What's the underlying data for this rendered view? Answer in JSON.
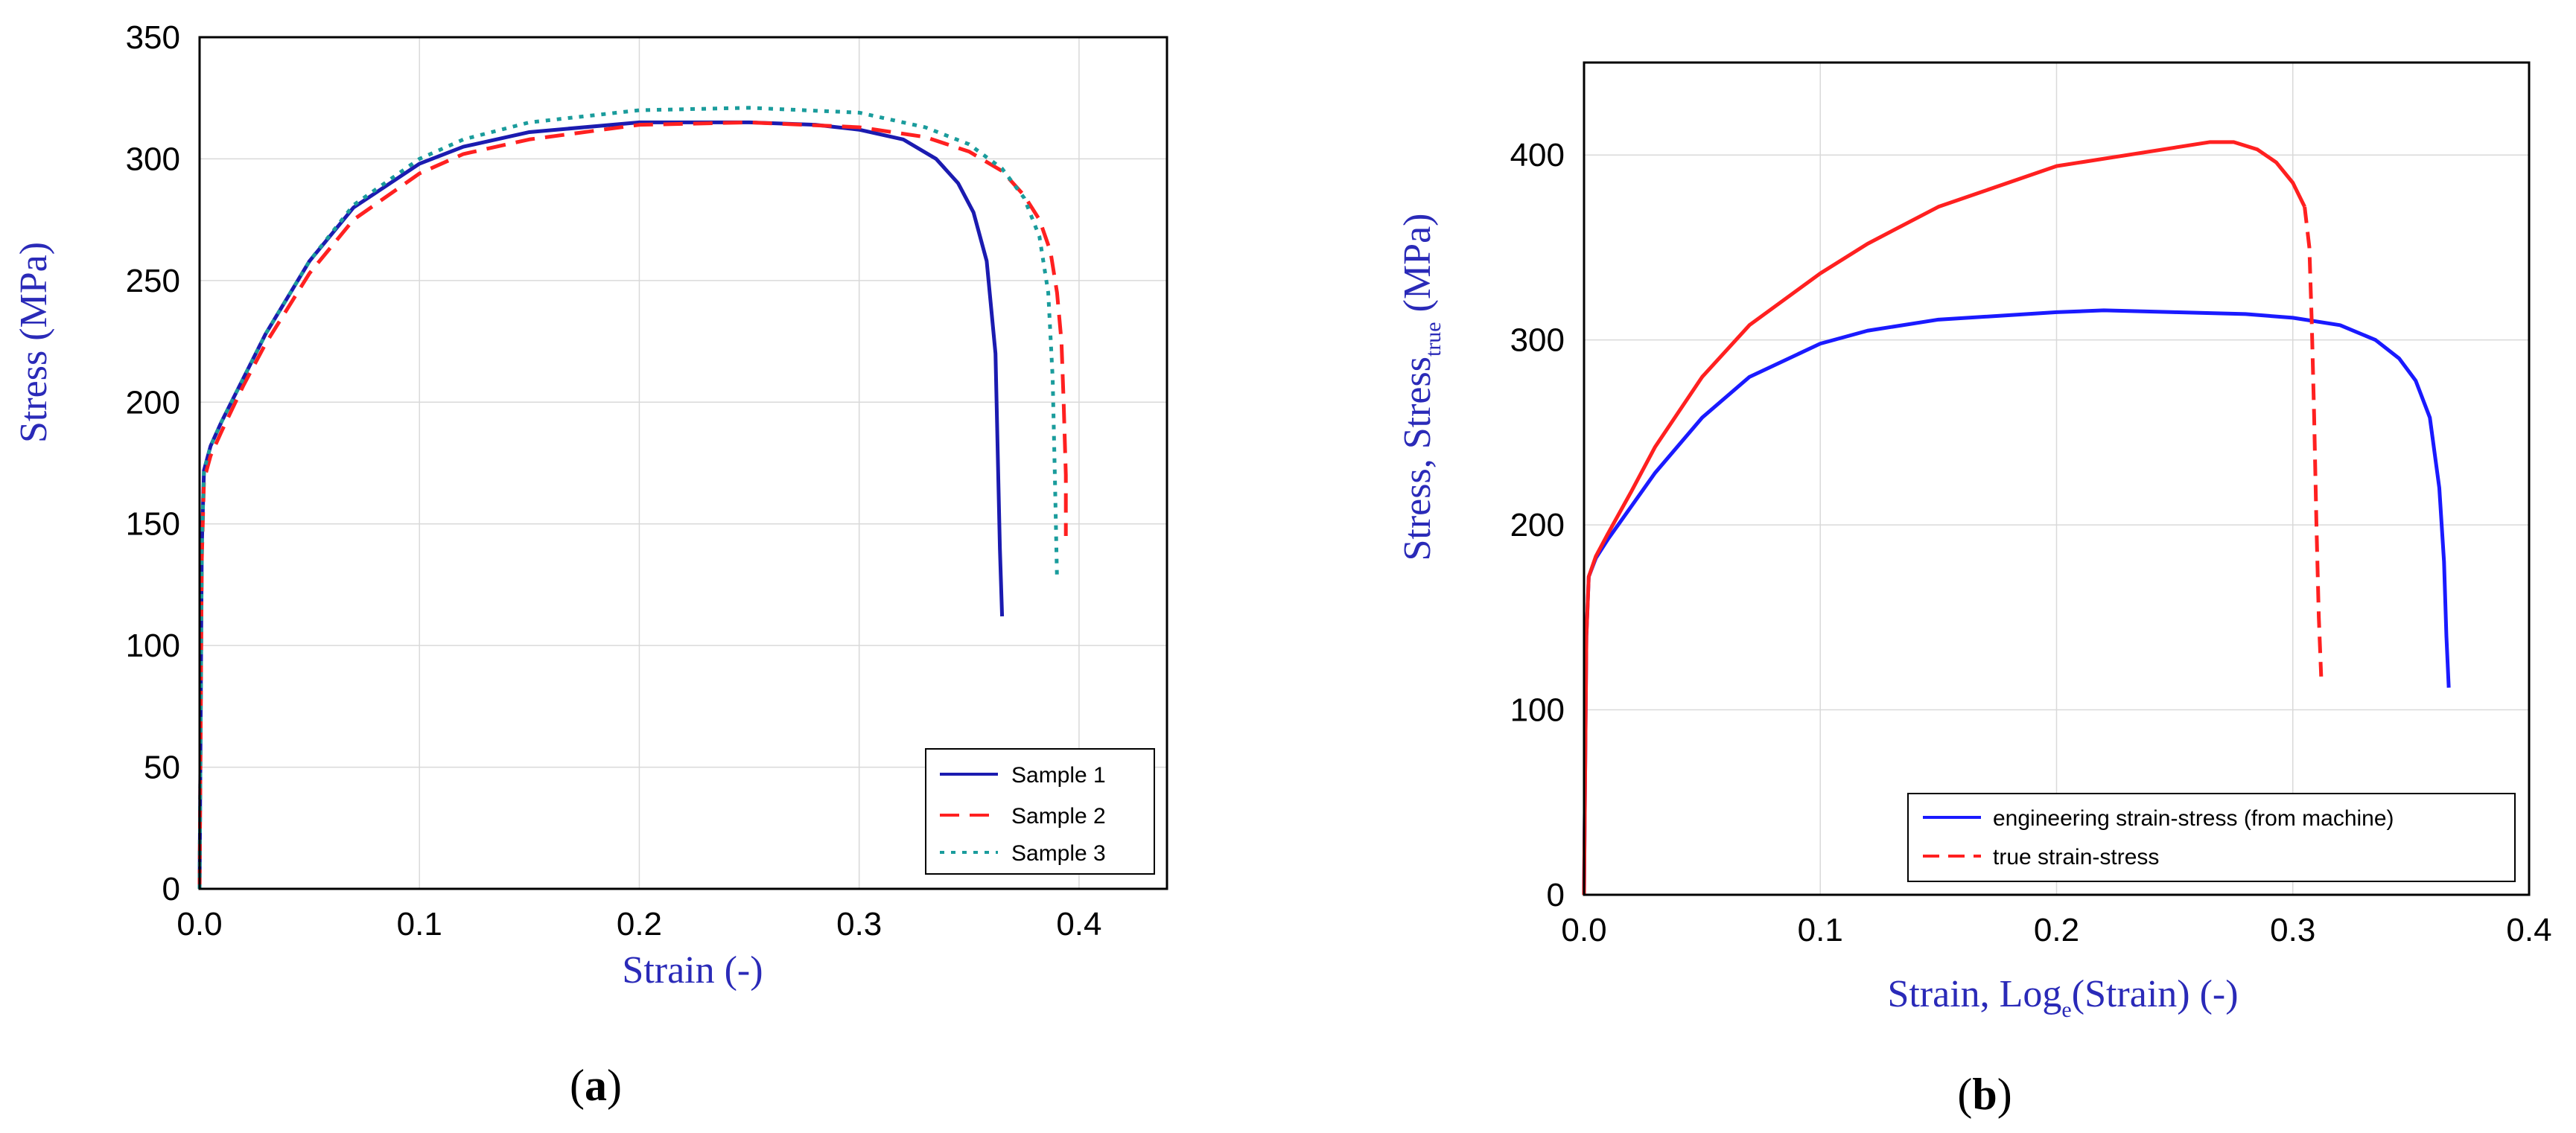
{
  "chart_data": [
    {
      "panel": "a",
      "type": "line",
      "title": "",
      "xlabel": "Strain (-)",
      "ylabel": "Stress (MPa)",
      "xlim": [
        0,
        0.44
      ],
      "ylim": [
        0,
        350
      ],
      "xticks": [
        0.0,
        0.1,
        0.2,
        0.3,
        0.4
      ],
      "xtick_labels": [
        "0.0",
        "0.1",
        "0.2",
        "0.3",
        "0.4"
      ],
      "yticks": [
        0,
        50,
        100,
        150,
        200,
        250,
        300,
        350
      ],
      "ytick_labels": [
        "0",
        "50",
        "100",
        "150",
        "200",
        "250",
        "300",
        "350"
      ],
      "grid": true,
      "legend_position": "bottom-right",
      "series": [
        {
          "name": "Sample 1",
          "color": "#1b1bb0",
          "dash": "solid",
          "x": [
            0,
            0.001,
            0.002,
            0.005,
            0.01,
            0.02,
            0.03,
            0.05,
            0.07,
            0.1,
            0.12,
            0.15,
            0.2,
            0.25,
            0.28,
            0.3,
            0.32,
            0.335,
            0.345,
            0.352,
            0.358,
            0.362,
            0.363,
            0.364,
            0.365
          ],
          "y": [
            0,
            140,
            172,
            182,
            192,
            210,
            228,
            258,
            280,
            298,
            305,
            311,
            315,
            315,
            314,
            312,
            308,
            300,
            290,
            278,
            258,
            220,
            180,
            140,
            112
          ]
        },
        {
          "name": "Sample 2",
          "color": "#ff2020",
          "dash": "dashed",
          "x": [
            0,
            0.001,
            0.002,
            0.005,
            0.01,
            0.02,
            0.03,
            0.05,
            0.07,
            0.1,
            0.12,
            0.15,
            0.2,
            0.25,
            0.3,
            0.33,
            0.35,
            0.365,
            0.375,
            0.382,
            0.387,
            0.39,
            0.392,
            0.393,
            0.394,
            0.394
          ],
          "y": [
            0,
            135,
            168,
            178,
            188,
            207,
            224,
            253,
            275,
            294,
            302,
            308,
            314,
            315,
            313,
            309,
            303,
            295,
            285,
            275,
            262,
            245,
            225,
            200,
            170,
            145
          ]
        },
        {
          "name": "Sample 3",
          "color": "#1a9c9c",
          "dash": "dotted",
          "x": [
            0,
            0.001,
            0.002,
            0.005,
            0.01,
            0.02,
            0.03,
            0.05,
            0.07,
            0.1,
            0.12,
            0.15,
            0.2,
            0.25,
            0.3,
            0.33,
            0.35,
            0.365,
            0.375,
            0.382,
            0.386,
            0.388,
            0.389,
            0.39
          ],
          "y": [
            0,
            140,
            172,
            182,
            192,
            210,
            228,
            258,
            281,
            300,
            308,
            315,
            320,
            321,
            319,
            313,
            306,
            296,
            284,
            268,
            245,
            210,
            170,
            127
          ]
        }
      ]
    },
    {
      "panel": "b",
      "type": "line",
      "title": "",
      "xlabel": "Strain, Log",
      "xlabel_sub": "e",
      "xlabel_tail": "(Strain)  (-)",
      "ylabel": "Stress, Stress",
      "ylabel_sub": "true",
      "ylabel_tail": " (MPa)",
      "xlim": [
        0,
        0.4
      ],
      "ylim": [
        0,
        450
      ],
      "xticks": [
        0.0,
        0.1,
        0.2,
        0.3,
        0.4
      ],
      "xtick_labels": [
        "0.0",
        "0.1",
        "0.2",
        "0.3",
        "0.4"
      ],
      "yticks": [
        0,
        100,
        200,
        300,
        400
      ],
      "ytick_labels": [
        "0",
        "100",
        "200",
        "300",
        "400"
      ],
      "grid": true,
      "legend_position": "bottom-right",
      "series": [
        {
          "name": "engineering strain-stress (from machine)",
          "color": "#1a1aff",
          "dash": "solid",
          "x": [
            0,
            0.001,
            0.002,
            0.005,
            0.01,
            0.02,
            0.03,
            0.05,
            0.07,
            0.1,
            0.12,
            0.15,
            0.2,
            0.22,
            0.25,
            0.28,
            0.3,
            0.32,
            0.335,
            0.345,
            0.352,
            0.358,
            0.362,
            0.364,
            0.365,
            0.366
          ],
          "y": [
            0,
            140,
            172,
            182,
            192,
            210,
            228,
            258,
            280,
            298,
            305,
            311,
            315,
            316,
            315,
            314,
            312,
            308,
            300,
            290,
            278,
            258,
            220,
            180,
            140,
            112
          ]
        },
        {
          "name": "true strain-stress",
          "color": "#ff2020",
          "dash": "solid-then-dashed",
          "x": [
            0,
            0.001,
            0.002,
            0.005,
            0.01,
            0.02,
            0.03,
            0.05,
            0.07,
            0.1,
            0.12,
            0.15,
            0.2,
            0.25,
            0.265,
            0.275,
            0.285,
            0.293,
            0.3,
            0.305,
            0.307,
            0.308,
            0.309,
            0.31,
            0.311,
            0.312
          ],
          "y": [
            0,
            140,
            172,
            183,
            195,
            218,
            242,
            280,
            308,
            336,
            352,
            372,
            394,
            404,
            407,
            407,
            403,
            396,
            385,
            372,
            350,
            310,
            260,
            200,
            150,
            118
          ]
        }
      ]
    }
  ]
}
